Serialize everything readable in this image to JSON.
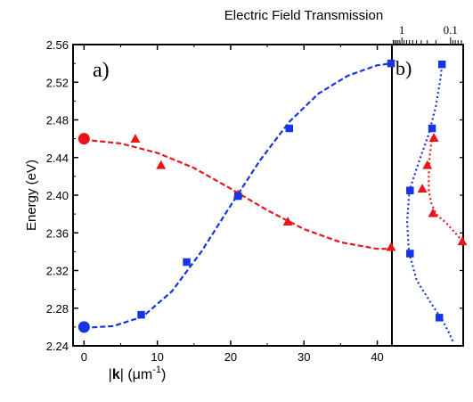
{
  "chart_data": [
    {
      "panel": "a)",
      "type": "scatter",
      "xlabel_prefix": "|",
      "xlabel_bold": "k",
      "xlabel_suffix": "| (μm",
      "xlabel_exp": "-1",
      "xlabel_close": ")",
      "ylabel": "Energy (eV)",
      "xlim": [
        -1.5,
        42
      ],
      "ylim": [
        2.24,
        2.56
      ],
      "xticks": [
        0,
        10,
        20,
        30,
        40
      ],
      "yticks": [
        2.24,
        2.28,
        2.32,
        2.36,
        2.4,
        2.44,
        2.48,
        2.52,
        2.56
      ],
      "ytick_labels": [
        "2.24",
        "2.28",
        "2.32",
        "2.36",
        "2.40",
        "2.44",
        "2.48",
        "2.52",
        "2.56"
      ],
      "grid": false,
      "series": [
        {
          "color": "#e8161b",
          "marker": "triangle",
          "points": [
            [
              7,
              2.46
            ],
            [
              10.5,
              2.432
            ],
            [
              21,
              2.401
            ],
            [
              27.8,
              2.372
            ],
            [
              42,
              2.345
            ]
          ],
          "origin_point": [
            0,
            2.46
          ],
          "fit": [
            [
              0,
              2.459
            ],
            [
              5,
              2.455
            ],
            [
              10,
              2.445
            ],
            [
              15,
              2.429
            ],
            [
              20,
              2.407
            ],
            [
              25,
              2.384
            ],
            [
              30,
              2.364
            ],
            [
              35,
              2.35
            ],
            [
              40,
              2.343
            ],
            [
              42,
              2.343
            ]
          ]
        },
        {
          "color": "#1535e0",
          "marker": "square",
          "points": [
            [
              7.8,
              2.273
            ],
            [
              14,
              2.329
            ],
            [
              21,
              2.399
            ],
            [
              28,
              2.471
            ],
            [
              42,
              2.54
            ]
          ],
          "origin_point": [
            0,
            2.26
          ],
          "fit": [
            [
              0,
              2.259
            ],
            [
              4,
              2.261
            ],
            [
              8,
              2.271
            ],
            [
              12,
              2.298
            ],
            [
              16,
              2.34
            ],
            [
              20,
              2.389
            ],
            [
              24,
              2.437
            ],
            [
              28,
              2.478
            ],
            [
              32,
              2.508
            ],
            [
              36,
              2.527
            ],
            [
              40,
              2.538
            ],
            [
              42,
              2.54
            ]
          ]
        }
      ]
    },
    {
      "panel": "b)",
      "type": "scatter",
      "title": "Electric Field Transmission",
      "xscale": "log",
      "xaxis_position": "top",
      "xlim": [
        1.6,
        0.055
      ],
      "ylim": [
        2.24,
        2.56
      ],
      "xtick_labels": [
        {
          "value": 1,
          "label": "1"
        },
        {
          "value": 0.1,
          "label": "0.1"
        }
      ],
      "series": [
        {
          "color": "#e8161b",
          "marker": "triangle",
          "points": [
            [
              0.38,
              2.407
            ],
            [
              0.3,
              2.432
            ],
            [
              0.22,
              2.461
            ],
            [
              0.23,
              2.381
            ],
            [
              0.056,
              2.351
            ]
          ],
          "fit": [
            [
              0.057,
              2.351
            ],
            [
              0.08,
              2.36
            ],
            [
              0.12,
              2.37
            ],
            [
              0.2,
              2.38
            ],
            [
              0.25,
              2.392
            ],
            [
              0.28,
              2.405
            ],
            [
              0.28,
              2.42
            ],
            [
              0.27,
              2.44
            ],
            [
              0.25,
              2.455
            ],
            [
              0.23,
              2.462
            ]
          ]
        },
        {
          "color": "#1535e0",
          "marker": "square",
          "points": [
            [
              0.68,
              2.405
            ],
            [
              0.68,
              2.338
            ],
            [
              0.15,
              2.539
            ],
            [
              0.24,
              2.471
            ],
            [
              0.17,
              2.27
            ]
          ],
          "fit": [
            [
              0.09,
              2.245
            ],
            [
              0.11,
              2.255
            ],
            [
              0.15,
              2.268
            ],
            [
              0.25,
              2.285
            ],
            [
              0.5,
              2.31
            ],
            [
              0.72,
              2.34
            ],
            [
              0.78,
              2.372
            ],
            [
              0.7,
              2.405
            ],
            [
              0.45,
              2.435
            ],
            [
              0.28,
              2.465
            ],
            [
              0.2,
              2.495
            ],
            [
              0.16,
              2.525
            ],
            [
              0.15,
              2.539
            ]
          ]
        }
      ]
    }
  ]
}
